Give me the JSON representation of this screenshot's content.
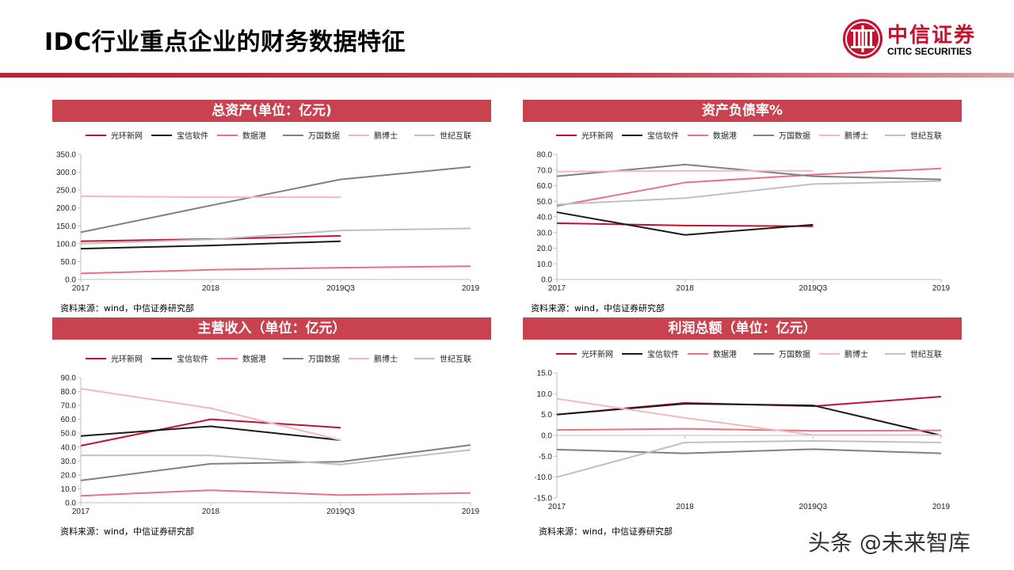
{
  "page": {
    "title": "IDC行业重点企业的财务数据特征",
    "logo_cn": "中信证券",
    "logo_en": "CITIC SECURITIES",
    "watermark": "头条 @未来智库"
  },
  "colors": {
    "accent": "#c8424f",
    "brand_red": "#c8102e"
  },
  "chart_data": [
    {
      "type": "line",
      "title": "总资产(单位：亿元)",
      "categories": [
        "2017",
        "2018",
        "2019Q3",
        "2019"
      ],
      "ylim": [
        0,
        350
      ],
      "yticks": [
        "0.0",
        "50.0",
        "100.0",
        "150.0",
        "200.0",
        "250.0",
        "300.0",
        "350.0"
      ],
      "ytick_values": [
        0,
        50,
        100,
        150,
        200,
        250,
        300,
        350
      ],
      "grid": false,
      "legend_position": "top",
      "source": "资料来源：wind，中信证券研究部",
      "series": [
        {
          "name": "光环新网",
          "color": "#c0142e",
          "values": [
            107,
            113,
            122,
            null
          ]
        },
        {
          "name": "宝信软件",
          "color": "#1a1a1a",
          "values": [
            86,
            95,
            107,
            null
          ]
        },
        {
          "name": "数据港",
          "color": "#e8727e",
          "values": [
            17,
            27,
            33,
            37
          ]
        },
        {
          "name": "万国数据",
          "color": "#808080",
          "values": [
            132,
            207,
            280,
            315
          ]
        },
        {
          "name": "鹏博士",
          "color": "#f4b9be",
          "values": [
            233,
            230,
            230,
            null
          ]
        },
        {
          "name": "世纪互联",
          "color": "#c0c0c0",
          "values": [
            100,
            112,
            137,
            143
          ]
        }
      ]
    },
    {
      "type": "line",
      "title": "资产负债率%",
      "categories": [
        "2017",
        "2018",
        "2019Q3",
        "2019"
      ],
      "ylim": [
        0,
        80
      ],
      "yticks": [
        "0.0",
        "10.0",
        "20.0",
        "30.0",
        "40.0",
        "50.0",
        "60.0",
        "70.0",
        "80.0"
      ],
      "ytick_values": [
        0,
        10,
        20,
        30,
        40,
        50,
        60,
        70,
        80
      ],
      "grid": false,
      "legend_position": "top",
      "source": "资料来源：wind，中信证券研究部",
      "series": [
        {
          "name": "光环新网",
          "color": "#c0142e",
          "values": [
            36,
            34.5,
            34,
            null
          ]
        },
        {
          "name": "宝信软件",
          "color": "#1a1a1a",
          "values": [
            43,
            28.5,
            35,
            null
          ]
        },
        {
          "name": "数据港",
          "color": "#e8727e",
          "values": [
            47,
            62,
            67,
            71
          ]
        },
        {
          "name": "万国数据",
          "color": "#808080",
          "values": [
            66,
            73.5,
            66,
            64
          ]
        },
        {
          "name": "鹏博士",
          "color": "#f4b9be",
          "values": [
            69,
            69.5,
            69.5,
            null
          ]
        },
        {
          "name": "世纪互联",
          "color": "#c0c0c0",
          "values": [
            48,
            52,
            61,
            63
          ]
        }
      ]
    },
    {
      "type": "line",
      "title": "主营收入（单位：亿元）",
      "categories": [
        "2017",
        "2018",
        "2019Q3",
        "2019"
      ],
      "ylim": [
        0,
        90
      ],
      "yticks": [
        "0.0",
        "10.0",
        "20.0",
        "30.0",
        "40.0",
        "50.0",
        "60.0",
        "70.0",
        "80.0",
        "90.0"
      ],
      "ytick_values": [
        0,
        10,
        20,
        30,
        40,
        50,
        60,
        70,
        80,
        90
      ],
      "grid": false,
      "legend_position": "top",
      "source": "资料来源：wind，中信证券研究部",
      "series": [
        {
          "name": "光环新网",
          "color": "#c0142e",
          "values": [
            41,
            60,
            54,
            null
          ]
        },
        {
          "name": "宝信软件",
          "color": "#1a1a1a",
          "values": [
            48,
            55,
            45,
            null
          ]
        },
        {
          "name": "数据港",
          "color": "#e8727e",
          "values": [
            5,
            9,
            5.5,
            7
          ]
        },
        {
          "name": "万国数据",
          "color": "#808080",
          "values": [
            16,
            28,
            29.5,
            41.5
          ]
        },
        {
          "name": "鹏博士",
          "color": "#f4b9be",
          "values": [
            82,
            68,
            45,
            null
          ]
        },
        {
          "name": "世纪互联",
          "color": "#c0c0c0",
          "values": [
            34,
            34,
            27.5,
            38
          ]
        }
      ]
    },
    {
      "type": "line",
      "title": "利润总额（单位：亿元）",
      "categories": [
        "2017",
        "2018",
        "2019Q3",
        "2019"
      ],
      "ylim": [
        -15,
        15
      ],
      "yticks": [
        "-15.0",
        "-10.0",
        "-5.0",
        "0.0",
        "5.0",
        "10.0",
        "15.0"
      ],
      "ytick_values": [
        -15,
        -10,
        -5,
        0,
        5,
        10,
        15
      ],
      "grid": false,
      "legend_position": "top",
      "source": "资料来源：wind，中信证券研究部",
      "series": [
        {
          "name": "光环新网",
          "color": "#c0142e",
          "values": [
            5,
            7.8,
            7,
            9.3
          ]
        },
        {
          "name": "宝信软件",
          "color": "#1a1a1a",
          "values": [
            5,
            7.6,
            7.2,
            0
          ]
        },
        {
          "name": "数据港",
          "color": "#e8727e",
          "values": [
            1.3,
            1.6,
            1.1,
            1.2
          ]
        },
        {
          "name": "万国数据",
          "color": "#808080",
          "values": [
            -3.4,
            -4.3,
            -3.3,
            -4.3
          ]
        },
        {
          "name": "鹏博士",
          "color": "#f4b9be",
          "values": [
            8.8,
            4.2,
            0.1,
            0.1
          ]
        },
        {
          "name": "世纪互联",
          "color": "#c0c0c0",
          "values": [
            -10,
            -1.7,
            -1.3,
            -1.7
          ]
        }
      ]
    }
  ]
}
